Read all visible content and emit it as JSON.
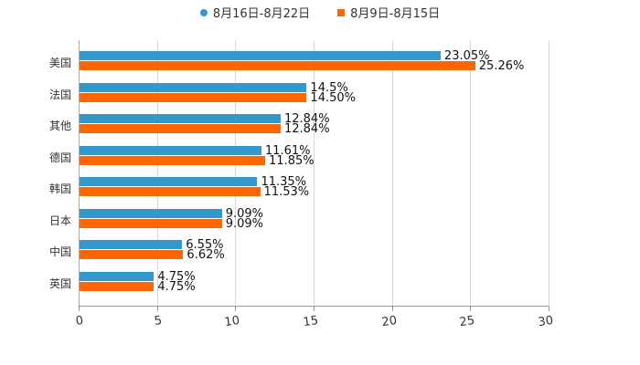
{
  "chart_data": {
    "type": "bar",
    "orientation": "horizontal",
    "title": "",
    "xlabel": "",
    "ylabel": "",
    "xlim": [
      0,
      30
    ],
    "x_ticks": [
      "0",
      "5",
      "10",
      "15",
      "20",
      "25",
      "30"
    ],
    "grid": true,
    "legend_position": "top",
    "categories": [
      "美国",
      "法国",
      "其他",
      "德国",
      "韩国",
      "日本",
      "中国",
      "英国"
    ],
    "series": [
      {
        "name": "8月16日-8月22日",
        "color": "#3399cc",
        "values": [
          23.05,
          14.5,
          12.84,
          11.61,
          11.35,
          9.09,
          6.55,
          4.75
        ],
        "labels": [
          "23.05%",
          "14.5%",
          "12.84%",
          "11.61%",
          "11.35%",
          "9.09%",
          "6.55%",
          "4.75%"
        ]
      },
      {
        "name": "8月9日-8月15日",
        "color": "#ff6600",
        "values": [
          25.26,
          14.5,
          12.84,
          11.85,
          11.53,
          9.09,
          6.62,
          4.75
        ],
        "labels": [
          "25.26%",
          "14.50%",
          "12.84%",
          "11.85%",
          "11.53%",
          "9.09%",
          "6.62%",
          "4.75%"
        ]
      }
    ]
  }
}
